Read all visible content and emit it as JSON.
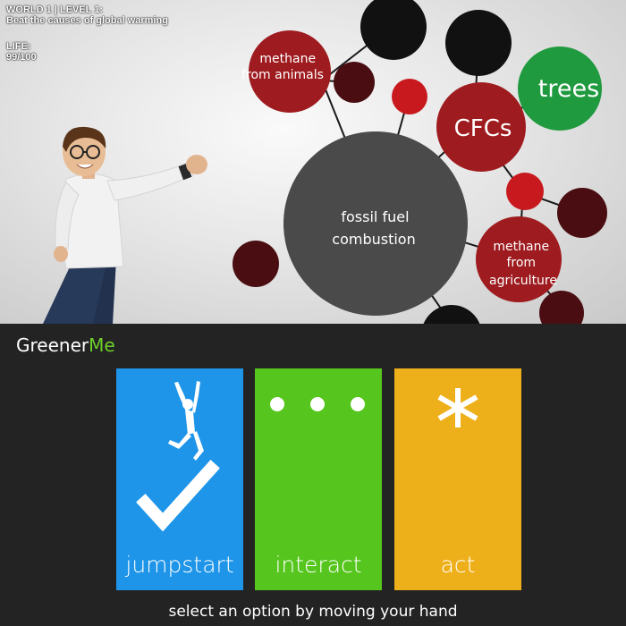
{
  "hud": {
    "world_level": "WORLD 1 | LEVEL 1:",
    "objective": "Beat the causes of global warming",
    "life_label": "LIFE:",
    "life_value": "99/100"
  },
  "bubbles": {
    "center": [
      "fossil fuel",
      "combustion"
    ],
    "methane_animals": [
      "methane",
      "from animals"
    ],
    "cfcs": "CFCs",
    "trees": "trees",
    "methane_agriculture": [
      "methane",
      "from",
      "agriculture"
    ]
  },
  "menu": {
    "brand_prefix": "Greener",
    "brand_suffix": "Me",
    "tiles": [
      {
        "label": "jumpstart",
        "icon": "jumping-person-checkmark-icon"
      },
      {
        "label": "interact",
        "icon": "ellipsis-dots-icon"
      },
      {
        "label": "act",
        "icon": "asterisk-icon"
      }
    ],
    "hint": "select an option by moving your hand"
  },
  "colors": {
    "bubble_dark": "#4a4a4a",
    "bubble_red": "#9e1b1f",
    "bubble_bright_red": "#c81a1e",
    "bubble_maroon": "#4a0e12",
    "bubble_black": "#111111",
    "trees_green": "#1f9a3e",
    "menu_bg": "#232323",
    "brand_accent": "#6dd12a",
    "tile_blue": "#1e95e8",
    "tile_green": "#56c51e",
    "tile_yellow": "#edb01a"
  }
}
